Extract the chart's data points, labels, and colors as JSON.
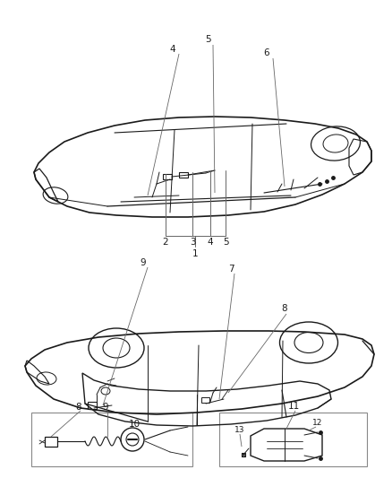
{
  "background_color": "#ffffff",
  "line_color": "#1a1a1a",
  "fig_width": 4.38,
  "fig_height": 5.33,
  "dpi": 100,
  "label_fontsize": 7.5,
  "callout_color": "#666666",
  "box_color": "#555555"
}
